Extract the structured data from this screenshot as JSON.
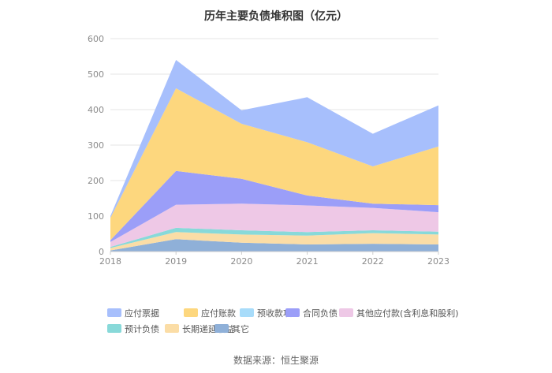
{
  "chart_data": {
    "type": "area",
    "stacked": true,
    "title": "历年主要负债堆积图（亿元）",
    "x": [
      "2018",
      "2019",
      "2020",
      "2021",
      "2022",
      "2023"
    ],
    "ylim": [
      0,
      600
    ],
    "yticks": [
      0,
      100,
      200,
      300,
      400,
      500,
      600
    ],
    "grid": true,
    "legend_position": "bottom",
    "series": [
      {
        "name": "其它",
        "color": "#8fb0d8",
        "values": [
          3,
          35,
          25,
          20,
          22,
          20
        ]
      },
      {
        "name": "长期递延收益",
        "color": "#fbdda6",
        "values": [
          7,
          20,
          23,
          25,
          30,
          28
        ]
      },
      {
        "name": "预计负债",
        "color": "#88d9d9",
        "values": [
          3,
          12,
          12,
          10,
          8,
          8
        ]
      },
      {
        "name": "其他应付款(含利息和股利)",
        "color": "#eec8e6",
        "values": [
          14,
          65,
          75,
          75,
          63,
          55
        ]
      },
      {
        "name": "合同负债",
        "color": "#9b9ef8",
        "values": [
          5,
          95,
          70,
          28,
          12,
          20
        ]
      },
      {
        "name": "预收款项",
        "color": "#a8dcfa",
        "values": [
          0,
          0,
          0,
          0,
          0,
          0
        ]
      },
      {
        "name": "应付账款",
        "color": "#fdd77e",
        "values": [
          63,
          233,
          155,
          150,
          105,
          165
        ]
      },
      {
        "name": "应付票据",
        "color": "#a7bffc",
        "values": [
          5,
          80,
          38,
          127,
          92,
          116
        ]
      }
    ],
    "legend_order": [
      "应付票据",
      "应付账款",
      "预收款项",
      "合同负债",
      "其他应付款(含利息和股利)",
      "预计负债",
      "长期递延收益",
      "其它"
    ],
    "source": "数据来源：恒生聚源"
  }
}
